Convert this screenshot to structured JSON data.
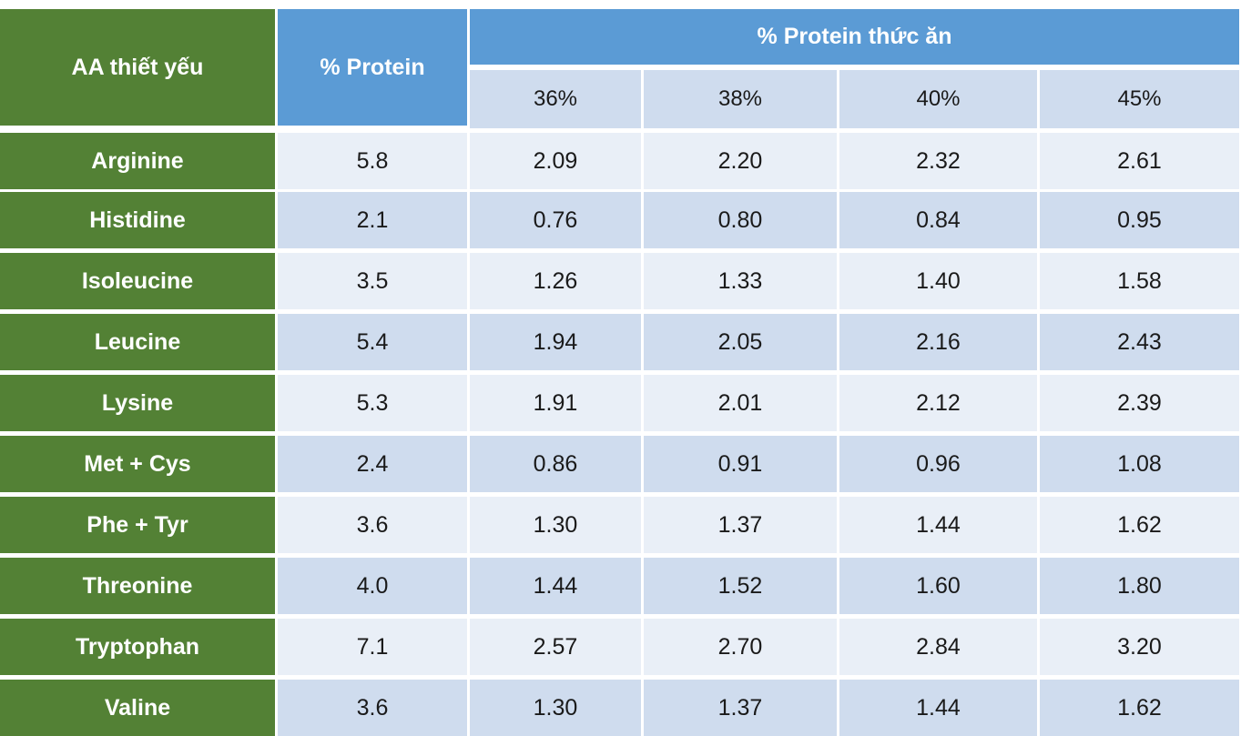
{
  "headers": {
    "aa": "AA thiết yếu",
    "protein": "% Protein",
    "feed_protein": "% Protein thức ăn",
    "levels": [
      "36%",
      "38%",
      "40%",
      "45%"
    ]
  },
  "rows": [
    {
      "name": "Arginine",
      "protein": "5.8",
      "values": [
        "2.09",
        "2.20",
        "2.32",
        "2.61"
      ]
    },
    {
      "name": "Histidine",
      "protein": "2.1",
      "values": [
        "0.76",
        "0.80",
        "0.84",
        "0.95"
      ]
    },
    {
      "name": "Isoleucine",
      "protein": "3.5",
      "values": [
        "1.26",
        "1.33",
        "1.40",
        "1.58"
      ]
    },
    {
      "name": "Leucine",
      "protein": "5.4",
      "values": [
        "1.94",
        "2.05",
        "2.16",
        "2.43"
      ]
    },
    {
      "name": "Lysine",
      "protein": "5.3",
      "values": [
        "1.91",
        "2.01",
        "2.12",
        "2.39"
      ]
    },
    {
      "name": "Met + Cys",
      "protein": "2.4",
      "values": [
        "0.86",
        "0.91",
        "0.96",
        "1.08"
      ]
    },
    {
      "name": "Phe + Tyr",
      "protein": "3.6",
      "values": [
        "1.30",
        "1.37",
        "1.44",
        "1.62"
      ]
    },
    {
      "name": "Threonine",
      "protein": "4.0",
      "values": [
        "1.44",
        "1.52",
        "1.60",
        "1.80"
      ]
    },
    {
      "name": "Tryptophan",
      "protein": "7.1",
      "values": [
        "2.57",
        "2.70",
        "2.84",
        "3.20"
      ]
    },
    {
      "name": "Valine",
      "protein": "3.6",
      "values": [
        "1.30",
        "1.37",
        "1.44",
        "1.62"
      ]
    }
  ],
  "colors": {
    "label_green": "#538135",
    "header_blue": "#5b9bd5",
    "row_light": "#e9eff7",
    "row_dark": "#cfdcee"
  }
}
